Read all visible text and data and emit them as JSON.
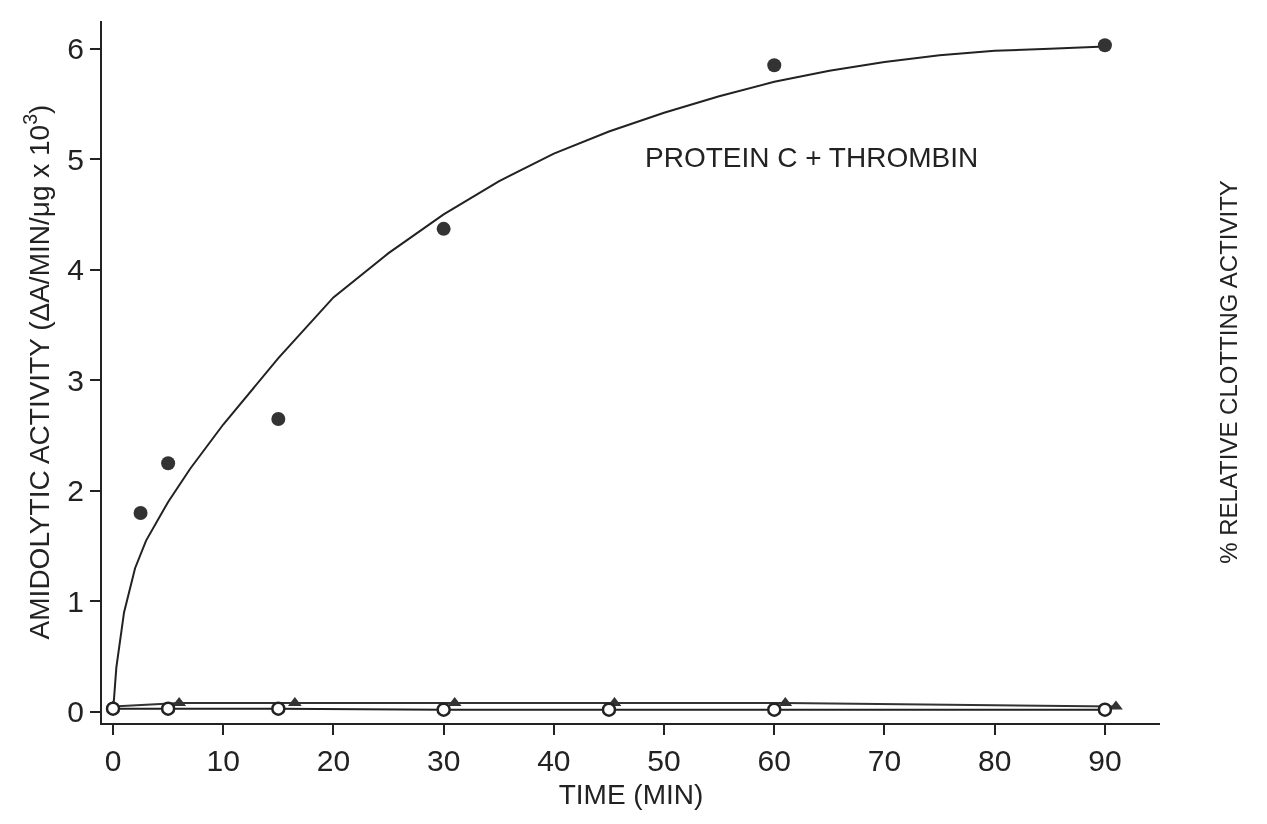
{
  "chart_data": {
    "type": "scatter",
    "xlabel": "TIME (MIN)",
    "ylabel": "AMIDOLYTIC ACTIVITY (ΔA/MIN/μg x 10$^{3}$)",
    "y2label": "% RELATIVE CLOTTING ACTIVITY",
    "xlim": [
      -1,
      95
    ],
    "xticks": [
      0,
      10,
      20,
      30,
      40,
      50,
      60,
      70,
      80,
      90
    ],
    "ylim": [
      -0.1,
      6.25
    ],
    "yticks": [
      0,
      1,
      2,
      3,
      4,
      5,
      6
    ],
    "annotations": [
      "PROTEIN C + THROMBIN"
    ],
    "series": [
      {
        "type": "line",
        "color": "#222222",
        "marker": "none",
        "x": [
          0,
          0.3,
          1,
          2,
          3,
          5,
          7,
          10,
          15,
          20,
          25,
          30,
          35,
          40,
          45,
          50,
          55,
          60,
          65,
          70,
          75,
          80,
          85,
          90
        ],
        "values": [
          0,
          0.4,
          0.9,
          1.3,
          1.55,
          1.9,
          2.2,
          2.6,
          3.2,
          3.75,
          4.15,
          4.5,
          4.8,
          5.05,
          5.25,
          5.42,
          5.57,
          5.7,
          5.8,
          5.88,
          5.94,
          5.98,
          6.0,
          6.02
        ]
      },
      {
        "color": "#333333",
        "marker": "circle",
        "x": [
          2.5,
          5,
          15,
          30,
          60,
          90
        ],
        "values": [
          1.8,
          2.25,
          2.65,
          4.37,
          5.85,
          6.03
        ]
      },
      {
        "type": "line",
        "color": "#333333",
        "marker": "triangle",
        "x": [
          0,
          6,
          16.5,
          31,
          45.5,
          61,
          91
        ],
        "values": [
          0.05,
          0.08,
          0.08,
          0.08,
          0.08,
          0.08,
          0.05
        ]
      },
      {
        "type": "line",
        "color": "#ffffff",
        "marker": "circle",
        "x": [
          0,
          5,
          15,
          30,
          45,
          60,
          90
        ],
        "values": [
          0.03,
          0.03,
          0.03,
          0.02,
          0.02,
          0.02,
          0.02
        ]
      }
    ]
  }
}
